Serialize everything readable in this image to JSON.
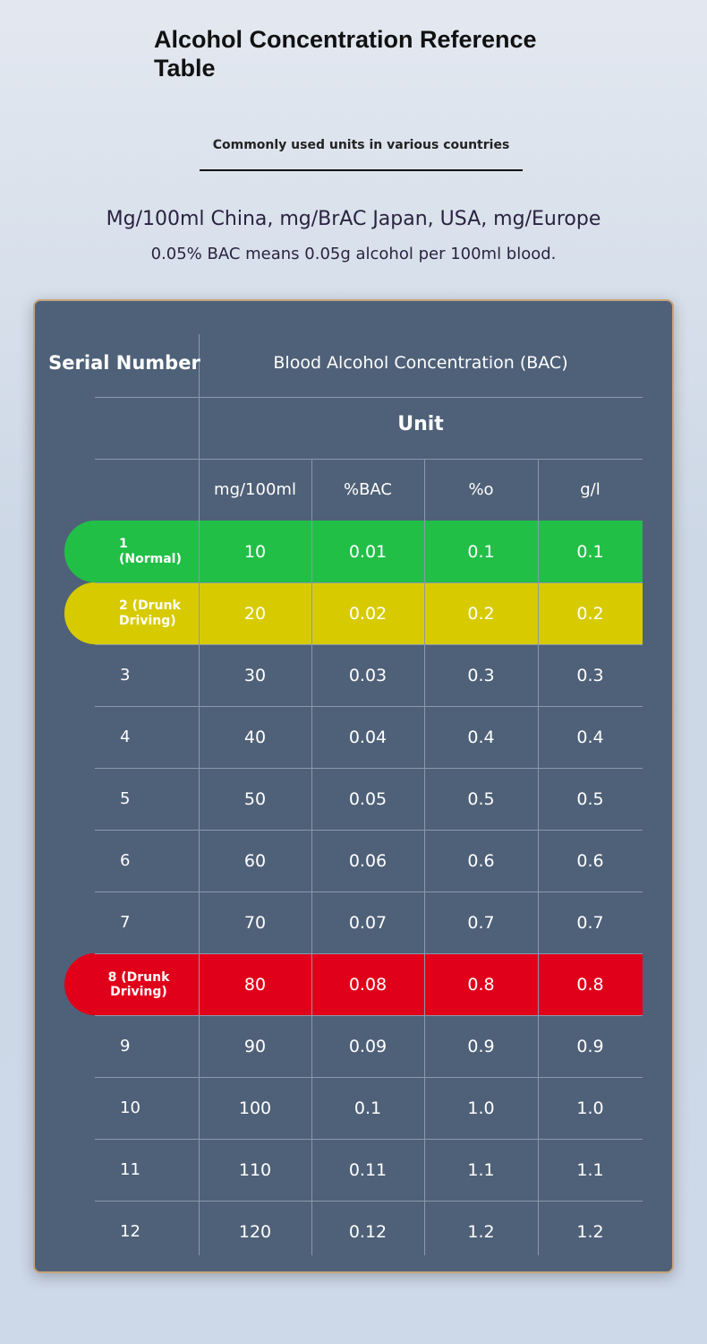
{
  "header": {
    "title": "Alcohol Concentration Reference Table",
    "subtitle": "Commonly used units in various countries",
    "units_note": "Mg/100ml China, mg/BrAC Japan, USA, mg/Europe",
    "bac_note": "0.05% BAC means 0.05g alcohol per 100ml blood."
  },
  "table": {
    "serial_header": "Serial Number",
    "bac_header": "Blood Alcohol Concentration (BAC)",
    "unit_header": "Unit",
    "columns": [
      "mg/100ml",
      "%BAC",
      "%o",
      "g/l"
    ],
    "rows": [
      {
        "cells": [
          "1 (Normal)",
          "10",
          "0.01",
          "0.1",
          "0.1"
        ],
        "color": "#22bf47"
      },
      {
        "cells": [
          "2 (Drunk Driving)",
          "20",
          "0.02",
          "0.2",
          "0.2"
        ],
        "color": "#d7cb00"
      },
      {
        "cells": [
          "3",
          "30",
          "0.03",
          "0.3",
          "0.3"
        ]
      },
      {
        "cells": [
          "4",
          "40",
          "0.04",
          "0.4",
          "0.4"
        ]
      },
      {
        "cells": [
          "5",
          "50",
          "0.05",
          "0.5",
          "0.5"
        ]
      },
      {
        "cells": [
          "6",
          "60",
          "0.06",
          "0.6",
          "0.6"
        ]
      },
      {
        "cells": [
          "7",
          "70",
          "0.07",
          "0.7",
          "0.7"
        ]
      },
      {
        "cells": [
          "8 (Drunk Driving)",
          "80",
          "0.08",
          "0.8",
          "0.8"
        ],
        "color": "#e1001a"
      },
      {
        "cells": [
          "9",
          "90",
          "0.09",
          "0.9",
          "0.9"
        ]
      },
      {
        "cells": [
          "10",
          "100",
          "0.1",
          "1.0",
          "1.0"
        ]
      },
      {
        "cells": [
          "11",
          "110",
          "0.11",
          "1.1",
          "1.1"
        ]
      },
      {
        "cells": [
          "12",
          "120",
          "0.12",
          "1.2",
          "1.2"
        ]
      }
    ]
  }
}
